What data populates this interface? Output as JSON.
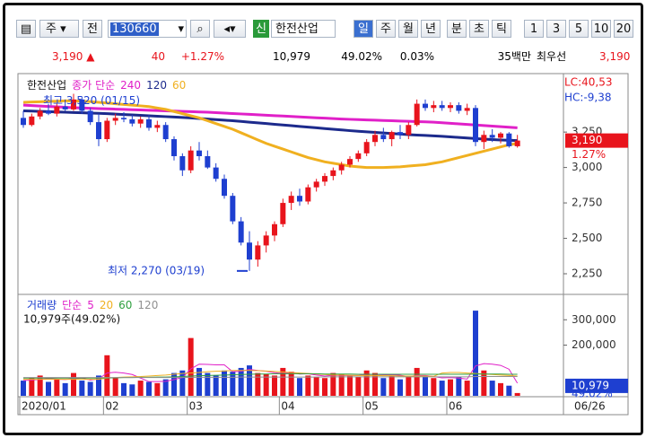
{
  "toolbar": {
    "market": "주",
    "mode": "전",
    "code": "130660",
    "badge": "신",
    "name": "한전산업",
    "periods": [
      "일",
      "주",
      "월",
      "년",
      "분",
      "초",
      "틱"
    ],
    "intervals": [
      "1",
      "3",
      "5",
      "10",
      "20"
    ]
  },
  "quote": {
    "price": "3,190",
    "arrow": "▲",
    "change": "40",
    "change_pct": "+1.27%",
    "volume": "10,979",
    "volume_ratio": "49.02%",
    "turnover": "0.03%",
    "amount": "35백만",
    "best_label": "최우선",
    "best_price": "3,190"
  },
  "chart_data": [
    {
      "type": "candlestick",
      "name": "한전산업",
      "legend_title": "종가 단순",
      "up_color": "#e8141c",
      "down_color": "#1e3fd0",
      "open": [
        3350,
        3300,
        3360,
        3400,
        3380,
        3430,
        3410,
        3480,
        3400,
        3320,
        3200,
        3330,
        3350,
        3340,
        3310,
        3340,
        3280,
        3300,
        3200,
        3080,
        2980,
        3120,
        3080,
        3000,
        2920,
        2800,
        2620,
        2470,
        2350,
        2450,
        2520,
        2600,
        2750,
        2800,
        2760,
        2860,
        2900,
        2940,
        2980,
        3020,
        3060,
        3100,
        3180,
        3230,
        3200,
        3250,
        3230,
        3300,
        3450,
        3420,
        3440,
        3420,
        3440,
        3400,
        3420,
        3180,
        3230,
        3210,
        3240,
        3150
      ],
      "high": [
        3400,
        3380,
        3420,
        3450,
        3450,
        3480,
        3520,
        3500,
        3420,
        3380,
        3350,
        3380,
        3390,
        3370,
        3360,
        3370,
        3330,
        3320,
        3220,
        3100,
        3150,
        3180,
        3120,
        3030,
        2950,
        2820,
        2650,
        2550,
        2480,
        2550,
        2620,
        2780,
        2830,
        2850,
        2880,
        2920,
        2960,
        3000,
        3040,
        3080,
        3120,
        3200,
        3260,
        3280,
        3260,
        3300,
        3320,
        3480,
        3480,
        3470,
        3470,
        3460,
        3460,
        3450,
        3440,
        3260,
        3270,
        3250,
        3250,
        3230
      ],
      "low": [
        3280,
        3290,
        3340,
        3370,
        3360,
        3400,
        3400,
        3380,
        3300,
        3150,
        3180,
        3300,
        3320,
        3290,
        3280,
        3260,
        3250,
        3180,
        3050,
        2940,
        2960,
        3050,
        2990,
        2900,
        2780,
        2600,
        2450,
        2270,
        2300,
        2400,
        2480,
        2580,
        2700,
        2730,
        2740,
        2830,
        2870,
        2910,
        2950,
        3000,
        3040,
        3080,
        3150,
        3180,
        3150,
        3200,
        3200,
        3290,
        3400,
        3390,
        3400,
        3390,
        3380,
        3370,
        3150,
        3130,
        3180,
        3170,
        3140,
        3140
      ],
      "close": [
        3300,
        3360,
        3400,
        3380,
        3430,
        3410,
        3480,
        3400,
        3320,
        3200,
        3330,
        3350,
        3340,
        3310,
        3340,
        3280,
        3300,
        3200,
        3080,
        2980,
        3120,
        3080,
        3000,
        2920,
        2800,
        2620,
        2470,
        2350,
        2450,
        2520,
        2600,
        2750,
        2800,
        2760,
        2860,
        2900,
        2940,
        2980,
        3020,
        3060,
        3100,
        3180,
        3230,
        3200,
        3250,
        3230,
        3300,
        3450,
        3420,
        3440,
        3420,
        3440,
        3400,
        3420,
        3180,
        3230,
        3210,
        3240,
        3150,
        3190
      ],
      "series": [
        {
          "name": "240",
          "color": "#e020c8",
          "values": [
            3440,
            3437,
            3434,
            3431,
            3428,
            3425,
            3422,
            3420,
            3418,
            3416,
            3414,
            3412,
            3410,
            3408,
            3406,
            3404,
            3402,
            3400,
            3398,
            3396,
            3394,
            3392,
            3390,
            3387,
            3384,
            3381,
            3378,
            3375,
            3372,
            3369,
            3366,
            3363,
            3360,
            3357,
            3354,
            3351,
            3348,
            3345,
            3342,
            3340,
            3338,
            3336,
            3334,
            3332,
            3330,
            3328,
            3326,
            3324,
            3322,
            3320,
            3316,
            3312,
            3308,
            3304,
            3300,
            3296,
            3292,
            3288,
            3284,
            3280
          ]
        },
        {
          "name": "120",
          "color": "#1c2a8c",
          "values": [
            3400,
            3398,
            3396,
            3394,
            3392,
            3390,
            3388,
            3386,
            3384,
            3382,
            3380,
            3377,
            3374,
            3371,
            3368,
            3365,
            3362,
            3359,
            3356,
            3353,
            3350,
            3346,
            3342,
            3338,
            3334,
            3330,
            3325,
            3320,
            3315,
            3310,
            3305,
            3300,
            3295,
            3290,
            3285,
            3280,
            3275,
            3270,
            3265,
            3260,
            3256,
            3252,
            3248,
            3244,
            3240,
            3236,
            3232,
            3229,
            3226,
            3223,
            3220,
            3216,
            3212,
            3208,
            3204,
            3200,
            3197,
            3194,
            3192,
            3190
          ]
        },
        {
          "name": "60",
          "color": "#f0b020",
          "values": [
            3460,
            3462,
            3464,
            3466,
            3468,
            3470,
            3470,
            3468,
            3465,
            3460,
            3455,
            3450,
            3445,
            3440,
            3435,
            3430,
            3420,
            3410,
            3395,
            3380,
            3365,
            3350,
            3330,
            3310,
            3290,
            3270,
            3245,
            3220,
            3195,
            3170,
            3150,
            3130,
            3110,
            3090,
            3070,
            3055,
            3040,
            3030,
            3020,
            3010,
            3005,
            3000,
            3000,
            3000,
            3002,
            3005,
            3010,
            3015,
            3020,
            3030,
            3040,
            3055,
            3070,
            3085,
            3100,
            3115,
            3130,
            3145,
            3160,
            3170
          ]
        }
      ],
      "ylim": [
        2117,
        3650
      ],
      "yticks": [
        {
          "value": 2250,
          "label": "2,250"
        },
        {
          "value": 2500,
          "label": "2,500"
        },
        {
          "value": 2750,
          "label": "2,750"
        },
        {
          "value": 3000,
          "label": "3,000"
        },
        {
          "value": 3250,
          "label": "3,250"
        }
      ],
      "annotations": [
        "최고 3,520 (01/15)",
        "최저 2,270 (03/19)"
      ],
      "indicators": [
        "LC:40,53",
        "HC:-9,38"
      ],
      "current": {
        "value": 3190,
        "label": "3,190",
        "change": "1.27%"
      }
    },
    {
      "type": "bar",
      "title": "거래량",
      "legend_title": "단순",
      "summary": "10,979주(49.02%)",
      "categories": [
        "2020/01",
        null,
        null,
        null,
        null,
        null,
        null,
        null,
        null,
        null,
        "02",
        null,
        null,
        null,
        null,
        null,
        null,
        null,
        null,
        null,
        "03",
        null,
        null,
        null,
        null,
        null,
        null,
        null,
        null,
        null,
        null,
        "04",
        null,
        null,
        null,
        null,
        null,
        null,
        null,
        null,
        null,
        "05",
        null,
        null,
        null,
        null,
        null,
        null,
        null,
        null,
        null,
        "06",
        null,
        null,
        null,
        null,
        null,
        null,
        null,
        null
      ],
      "end_label": "06/26",
      "values": [
        60000,
        70000,
        80000,
        55000,
        65000,
        50000,
        90000,
        60000,
        55000,
        80000,
        160000,
        70000,
        50000,
        45000,
        60000,
        55000,
        50000,
        65000,
        90000,
        100000,
        228000,
        110000,
        90000,
        80000,
        100000,
        95000,
        110000,
        120000,
        90000,
        85000,
        80000,
        110000,
        95000,
        70000,
        80000,
        75000,
        70000,
        90000,
        85000,
        80000,
        75000,
        100000,
        90000,
        70000,
        80000,
        65000,
        75000,
        110000,
        80000,
        70000,
        60000,
        65000,
        75000,
        60000,
        336000,
        100000,
        60000,
        50000,
        40000,
        10979
      ],
      "series": [
        {
          "name": "5",
          "color": "#e020c8",
          "values": [
            60000,
            62000,
            65000,
            68000,
            66000,
            64000,
            68000,
            70000,
            62000,
            67000,
            90000,
            93000,
            90000,
            84000,
            70000,
            56000,
            56000,
            57000,
            64000,
            72000,
            106000,
            125000,
            124000,
            122000,
            122000,
            95000,
            97000,
            104000,
            100000,
            97000,
            91000,
            88000,
            92000,
            86000,
            87000,
            82000,
            78000,
            81000,
            80000,
            80000,
            80000,
            84000,
            84000,
            83000,
            83000,
            81000,
            76000,
            80000,
            80000,
            76000,
            71000,
            72000,
            70000,
            66000,
            118000,
            127000,
            125000,
            120000,
            105000,
            50000
          ]
        },
        {
          "name": "20",
          "color": "#f0b020",
          "values": [
            65000,
            65000,
            65000,
            65000,
            65000,
            65000,
            65000,
            65000,
            65000,
            65000,
            70000,
            72000,
            74000,
            75000,
            76000,
            78000,
            80000,
            82000,
            85000,
            88000,
            90000,
            92000,
            95000,
            97000,
            98000,
            100000,
            100000,
            100000,
            99000,
            98000,
            96000,
            94000,
            92000,
            90000,
            88000,
            86000,
            84000,
            82000,
            82000,
            81000,
            80000,
            80000,
            80000,
            79000,
            79000,
            78000,
            78000,
            78000,
            78000,
            77000,
            90000,
            92000,
            92000,
            90000,
            88000,
            86000,
            84000,
            82000,
            80000,
            78000
          ]
        },
        {
          "name": "60",
          "color": "#30a040",
          "values": [
            70000,
            70000,
            70000,
            70000,
            70000,
            70000,
            70000,
            70000,
            70000,
            70000,
            71000,
            71000,
            72000,
            72000,
            73000,
            73000,
            74000,
            74000,
            75000,
            76000,
            78000,
            79000,
            80000,
            81000,
            82000,
            83000,
            84000,
            85000,
            86000,
            86000,
            87000,
            87000,
            87000,
            87000,
            87000,
            87000,
            86000,
            86000,
            86000,
            86000,
            85000,
            85000,
            85000,
            85000,
            85000,
            85000,
            85000,
            85000,
            85000,
            85000,
            85000,
            85000,
            85000,
            85000,
            86000,
            86000,
            86000,
            86000,
            85000,
            85000
          ]
        },
        {
          "name": "120",
          "color": "#909090",
          "values": [
            72000,
            72000,
            72000,
            72000,
            72000,
            72000,
            72000,
            72000,
            72000,
            72000,
            72000,
            72000,
            72000,
            72000,
            72000,
            72000,
            72000,
            72000,
            72000,
            72000,
            73000,
            73000,
            73000,
            73000,
            73000,
            73000,
            74000,
            74000,
            74000,
            74000,
            74000,
            74000,
            74000,
            74000,
            74000,
            74000,
            75000,
            75000,
            75000,
            75000,
            75000,
            75000,
            75000,
            75000,
            75000,
            75000,
            75000,
            75000,
            75000,
            75000,
            75000,
            75000,
            75000,
            75000,
            76000,
            76000,
            76000,
            76000,
            76000,
            76000
          ]
        }
      ],
      "ylim": [
        0,
        393000
      ],
      "yticks": [
        {
          "value": 200000,
          "label": "200,000"
        },
        {
          "value": 300000,
          "label": "300,000"
        }
      ],
      "current": {
        "value": 10979,
        "label": "10,979",
        "ratio": "49.02%"
      }
    }
  ]
}
